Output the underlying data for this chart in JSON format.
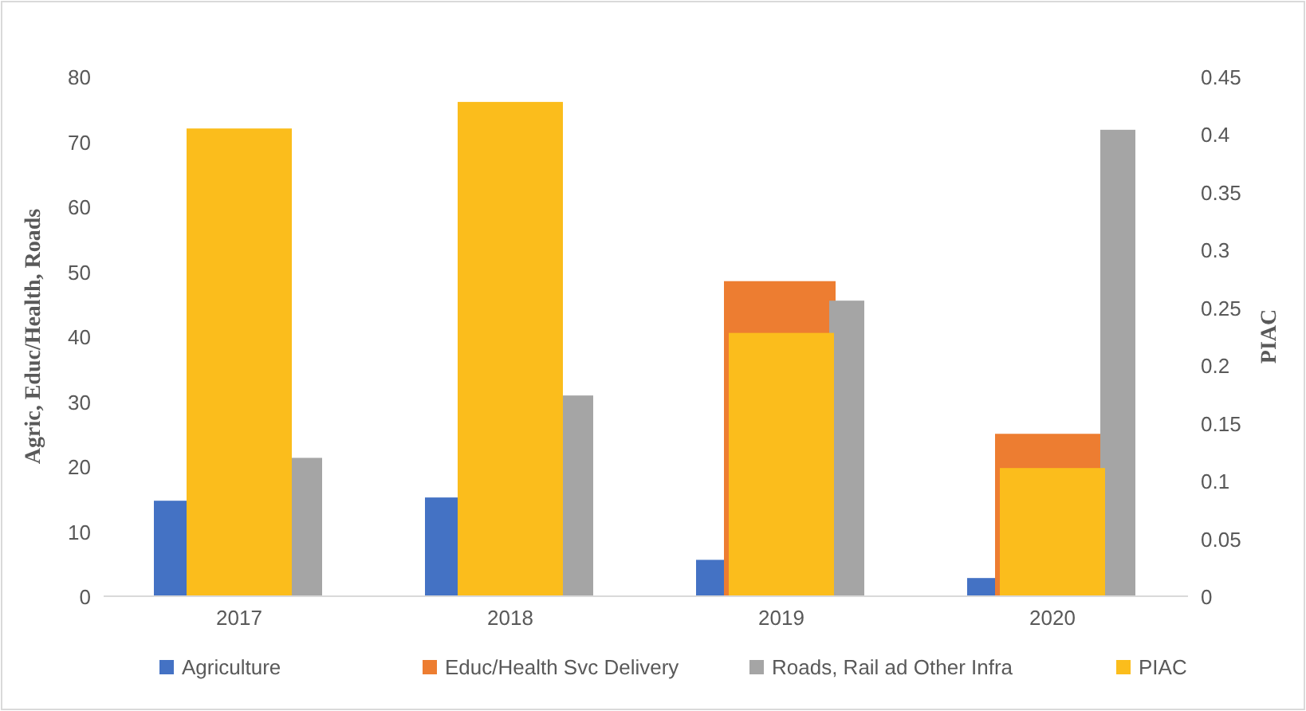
{
  "chart_data": {
    "type": "bar",
    "ylabel": "Agric, Educ/Health, Roads",
    "y2label": "PIAC",
    "categories": [
      "2017",
      "2018",
      "2019",
      "2020"
    ],
    "series": [
      {
        "name": "Agriculture",
        "color": "#4472c4",
        "values": [
          14.7,
          15.2,
          5.6,
          2.8
        ]
      },
      {
        "name": "Educ/Health Svc Delivery",
        "color": "#ed7d31",
        "values": [
          null,
          null,
          48.5,
          25
        ]
      },
      {
        "name": "Roads, Rail ad Other Infra",
        "color": "#a5a5a5",
        "values": [
          21.3,
          30.9,
          45.5,
          71.8
        ]
      },
      {
        "name": "PIAC",
        "color": "#fbbd1c",
        "values": [
          0.405,
          0.428,
          0.228,
          0.111
        ],
        "axis": "y2"
      }
    ],
    "ylim": [
      0,
      80
    ],
    "yticks": [
      0,
      10,
      20,
      30,
      40,
      50,
      60,
      70,
      80
    ],
    "y2lim": [
      0,
      0.45
    ],
    "y2ticks": [
      0,
      0.05,
      0.1,
      0.15,
      0.2,
      0.25,
      0.3,
      0.35,
      0.4,
      0.45
    ],
    "legend": "bottom",
    "grid": false
  }
}
